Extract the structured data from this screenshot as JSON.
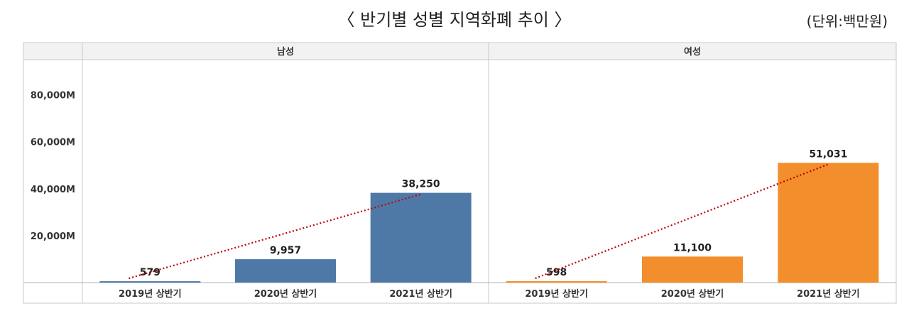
{
  "title": "〈 반기별 성별 지역화폐 추이 〉",
  "unit": "(단위:백만원)",
  "chart_data": {
    "type": "bar",
    "y_ticks": [
      {
        "value": 20000,
        "label": "20,000M"
      },
      {
        "value": 40000,
        "label": "40,000M"
      },
      {
        "value": 60000,
        "label": "60,000M"
      },
      {
        "value": 80000,
        "label": "80,000M"
      }
    ],
    "ylim": [
      0,
      95000
    ],
    "trendline": "dotted",
    "panels": [
      {
        "name": "남성",
        "color": "#4e79a7",
        "categories": [
          "2019년 상반기",
          "2020년 상반기",
          "2021년 상반기"
        ],
        "values": [
          579,
          9957,
          38250
        ],
        "labels": [
          "579",
          "9,957",
          "38,250"
        ]
      },
      {
        "name": "여성",
        "color": "#f28e2b",
        "categories": [
          "2019년 상반기",
          "2020년 상반기",
          "2021년 상반기"
        ],
        "values": [
          598,
          11100,
          51031
        ],
        "labels": [
          "598",
          "11,100",
          "51,031"
        ]
      }
    ],
    "trend_color": "#c00000",
    "grid": false
  }
}
